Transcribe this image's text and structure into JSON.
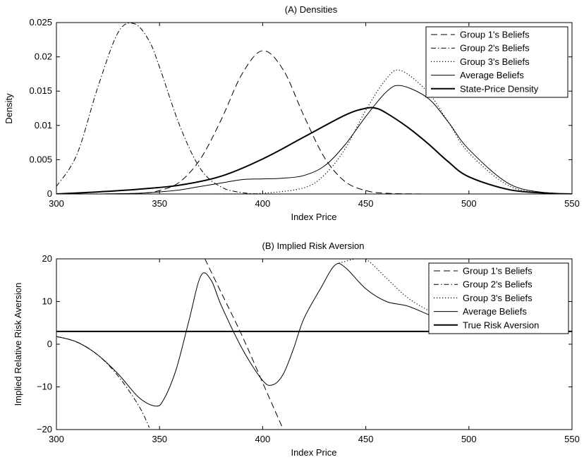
{
  "chart_data": [
    {
      "type": "line",
      "title": "(A) Densities",
      "xlabel": "Index Price",
      "ylabel": "Density",
      "xlim": [
        300,
        550
      ],
      "ylim": [
        0,
        0.025
      ],
      "xticks": [
        "300",
        "350",
        "400",
        "450",
        "500",
        "550"
      ],
      "yticks": [
        "0",
        "0.005",
        "0.01",
        "0.015",
        "0.02",
        "0.025"
      ],
      "grid": false,
      "legend_position": "top-right",
      "series": [
        {
          "name": "Group 1's Beliefs",
          "style": "dashed",
          "x": [
            300,
            320,
            340,
            350,
            360,
            370,
            380,
            390,
            400,
            410,
            420,
            430,
            440,
            450,
            460,
            480,
            500,
            550
          ],
          "y": [
            0,
            0,
            0.0001,
            0.0005,
            0.0018,
            0.0052,
            0.0109,
            0.0175,
            0.0209,
            0.0181,
            0.0114,
            0.0053,
            0.0018,
            0.0005,
            0.0001,
            0,
            0,
            0
          ]
        },
        {
          "name": "Group 2's Beliefs",
          "style": "dashdot",
          "x": [
            300,
            310,
            320,
            330,
            338,
            345,
            350,
            360,
            370,
            380,
            390,
            400,
            420,
            450,
            550
          ],
          "y": [
            0.0011,
            0.0058,
            0.0155,
            0.0236,
            0.0248,
            0.0223,
            0.0185,
            0.0098,
            0.0036,
            0.001,
            0.0002,
            0,
            0,
            0,
            0
          ]
        },
        {
          "name": "Group 3's Beliefs",
          "style": "dotted",
          "x": [
            300,
            380,
            400,
            420,
            430,
            440,
            450,
            460,
            467,
            480,
            490,
            500,
            520,
            540,
            550
          ],
          "y": [
            0,
            0,
            0.0001,
            0.0009,
            0.0028,
            0.0066,
            0.0122,
            0.0168,
            0.018,
            0.0149,
            0.0105,
            0.006,
            0.0011,
            0.0001,
            0
          ],
          "note": ""
        },
        {
          "name": "Average Beliefs",
          "style": "solid",
          "x": [
            300,
            320,
            340,
            350,
            360,
            370,
            380,
            390,
            400,
            410,
            420,
            430,
            440,
            450,
            460,
            467,
            480,
            490,
            500,
            520,
            540,
            550
          ],
          "y": [
            0,
            0,
            0.0001,
            0.0003,
            0.0006,
            0.0011,
            0.0016,
            0.0021,
            0.0022,
            0.0023,
            0.0027,
            0.0041,
            0.0072,
            0.0113,
            0.0149,
            0.0158,
            0.014,
            0.0105,
            0.0065,
            0.0014,
            0.0001,
            0
          ]
        },
        {
          "name": "State-Price Density",
          "style": "thick",
          "x": [
            300,
            320,
            340,
            360,
            380,
            400,
            420,
            440,
            450,
            455,
            460,
            470,
            480,
            490,
            500,
            520,
            540,
            550
          ],
          "y": [
            0,
            0.0003,
            0.0007,
            0.0013,
            0.0026,
            0.0051,
            0.0083,
            0.0115,
            0.0125,
            0.0125,
            0.0118,
            0.0098,
            0.0074,
            0.0047,
            0.0025,
            0.0006,
            0.0001,
            0
          ]
        }
      ]
    },
    {
      "type": "line",
      "title": "(B) Implied Risk Aversion",
      "xlabel": "Index Price",
      "ylabel": "Implied Relative Risk Aversion",
      "xlim": [
        300,
        550
      ],
      "ylim": [
        -20,
        20
      ],
      "xticks": [
        "300",
        "350",
        "400",
        "450",
        "500",
        "550"
      ],
      "yticks": [
        "−20",
        "−10",
        "0",
        "10",
        "20"
      ],
      "grid": false,
      "legend_position": "top-right",
      "series": [
        {
          "name": "Group 1's Beliefs",
          "style": "dashed",
          "x": [
            372,
            380,
            390,
            400,
            410
          ],
          "y": [
            20,
            12,
            2,
            -9,
            -20
          ]
        },
        {
          "name": "Group 2's Beliefs",
          "style": "dashdot",
          "x": [
            300,
            310,
            320,
            330,
            340,
            345
          ],
          "y": [
            1.8,
            0.5,
            -2.5,
            -7.5,
            -14.5,
            -19.5
          ]
        },
        {
          "name": "Group 3's Beliefs",
          "style": "dotted",
          "x": [
            437,
            445,
            450,
            460,
            470,
            480,
            490,
            500,
            510,
            520
          ],
          "y": [
            19,
            20,
            20,
            15.5,
            11,
            8,
            5.5,
            4.5,
            4,
            3.5
          ]
        },
        {
          "name": "Average Beliefs",
          "style": "solid",
          "x": [
            300,
            310,
            320,
            330,
            340,
            348,
            352,
            358,
            364,
            370,
            375,
            380,
            390,
            400,
            405,
            410,
            415,
            420,
            428,
            435,
            440,
            450,
            460,
            470,
            480,
            490,
            500,
            510,
            520
          ],
          "y": [
            1.8,
            0.5,
            -2.5,
            -7,
            -12.5,
            -14.5,
            -13,
            -6,
            5,
            16,
            15,
            9,
            -1,
            -8.5,
            -9.5,
            -7,
            -1,
            6,
            13,
            18.5,
            18,
            13,
            10,
            9,
            7,
            5,
            4.3,
            3.8,
            3.4
          ]
        },
        {
          "name": "True Risk Aversion",
          "style": "thick",
          "x": [
            300,
            550
          ],
          "y": [
            3,
            3
          ]
        }
      ]
    }
  ]
}
